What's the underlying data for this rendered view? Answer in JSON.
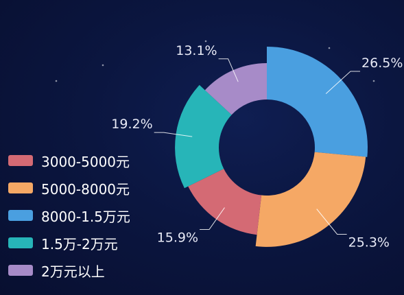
{
  "chart_data": {
    "type": "pie",
    "donut": true,
    "rose": true,
    "legend_position": "left",
    "categories": [
      "3000-5000元",
      "5000-8000元",
      "8000-1.5万元",
      "1.5万-2万元",
      "2万元以上"
    ],
    "values": [
      15.9,
      25.3,
      26.5,
      19.2,
      13.1
    ],
    "value_labels": [
      "15.9%",
      "25.3%",
      "26.5%",
      "19.2%",
      "13.1%"
    ],
    "colors": [
      "#d46a74",
      "#f5a865",
      "#4a9fe0",
      "#27b5b8",
      "#a78bc8"
    ]
  }
}
